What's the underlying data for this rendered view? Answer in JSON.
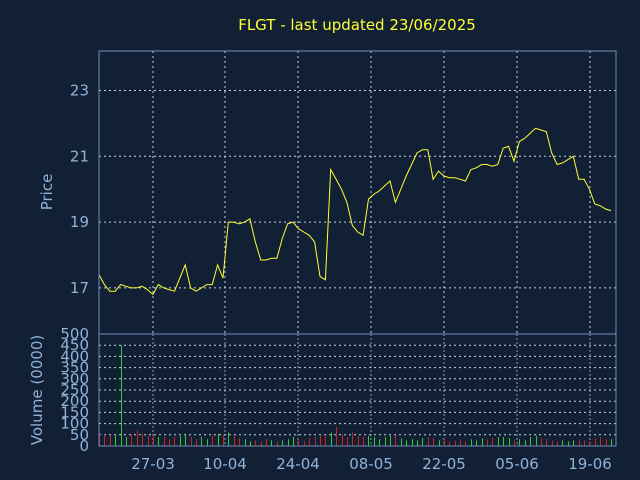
{
  "chart_data": [
    {
      "type": "line",
      "title": "FLGT - last updated 23/06/2025",
      "ylabel": "Price",
      "ylim": [
        15.6,
        24.2
      ],
      "yticks": [
        "17",
        "19",
        "21",
        "23"
      ],
      "x_tick_labels": [
        "27-03",
        "10-04",
        "24-04",
        "08-05",
        "22-05",
        "05-06",
        "19-06"
      ],
      "grid": true,
      "colors": {
        "line": "#ffff33",
        "text": "#8fb3d9",
        "background": "#112035"
      },
      "series": [
        {
          "values": [
            17.4,
            17.1,
            16.9,
            16.9,
            17.1,
            17.05,
            17.0,
            17.0,
            17.05,
            16.95,
            16.8,
            17.1,
            17.0,
            16.95,
            16.9,
            17.3,
            17.7,
            17.0,
            16.9,
            17.0,
            17.1,
            17.1,
            17.7,
            17.3,
            19.0,
            19.0,
            18.95,
            19.0,
            19.1,
            18.4,
            17.85,
            17.85,
            17.9,
            17.9,
            18.5,
            18.95,
            19.0,
            18.8,
            18.7,
            18.6,
            18.4,
            17.35,
            17.25,
            20.6,
            20.3,
            20.0,
            19.6,
            18.9,
            18.7,
            18.6,
            19.7,
            19.85,
            19.95,
            20.1,
            20.25,
            19.6,
            20.0,
            20.4,
            20.75,
            21.1,
            21.2,
            21.2,
            20.3,
            20.55,
            20.4,
            20.35,
            20.35,
            20.3,
            20.25,
            20.6,
            20.65,
            20.75,
            20.75,
            20.7,
            20.75,
            21.25,
            21.3,
            20.85,
            21.45,
            21.55,
            21.7,
            21.85,
            21.8,
            21.75,
            21.1,
            20.75,
            20.8,
            20.9,
            21.0,
            20.3,
            20.3,
            20.0,
            19.55,
            19.5,
            19.4,
            19.35
          ]
        }
      ]
    },
    {
      "type": "bar",
      "ylabel": "Volume (0000)",
      "ylim": [
        0,
        500
      ],
      "yticks": [
        "0",
        "50",
        "100",
        "150",
        "200",
        "250",
        "300",
        "350",
        "400",
        "450",
        "500"
      ],
      "colors": {
        "up": "#33cc33",
        "down": "#cc2222"
      },
      "series": [
        {
          "values": [
            55,
            50,
            45,
            45,
            450,
            40,
            50,
            70,
            55,
            45,
            50,
            40,
            40,
            30,
            40,
            45,
            55,
            40,
            30,
            40,
            30,
            45,
            55,
            50,
            60,
            45,
            35,
            30,
            20,
            25,
            20,
            30,
            25,
            20,
            25,
            30,
            40,
            35,
            20,
            35,
            40,
            45,
            45,
            60,
            85,
            50,
            40,
            60,
            45,
            40,
            45,
            40,
            30,
            40,
            45,
            45,
            35,
            25,
            30,
            25,
            35,
            40,
            35,
            25,
            30,
            20,
            25,
            30,
            20,
            30,
            25,
            35,
            30,
            35,
            40,
            40,
            35,
            25,
            30,
            25,
            40,
            45,
            35,
            30,
            25,
            20,
            25,
            20,
            25,
            30,
            25,
            20,
            35,
            40,
            30,
            30
          ],
          "directions": [
            "d",
            "d",
            "d",
            "u",
            "u",
            "u",
            "d",
            "d",
            "d",
            "d",
            "d",
            "u",
            "d",
            "d",
            "d",
            "u",
            "u",
            "d",
            "d",
            "u",
            "u",
            "d",
            "u",
            "d",
            "u",
            "d",
            "d",
            "u",
            "u",
            "d",
            "d",
            "d",
            "u",
            "d",
            "u",
            "u",
            "u",
            "d",
            "d",
            "d",
            "d",
            "d",
            "d",
            "u",
            "d",
            "d",
            "d",
            "d",
            "d",
            "d",
            "u",
            "u",
            "u",
            "u",
            "u",
            "d",
            "u",
            "u",
            "u",
            "u",
            "u",
            "d",
            "d",
            "u",
            "d",
            "d",
            "d",
            "d",
            "d",
            "u",
            "u",
            "u",
            "d",
            "d",
            "u",
            "u",
            "u",
            "d",
            "u",
            "u",
            "u",
            "u",
            "d",
            "d",
            "d",
            "d",
            "u",
            "u",
            "u",
            "d",
            "d",
            "d",
            "d",
            "d",
            "d",
            "u"
          ]
        }
      ]
    }
  ]
}
